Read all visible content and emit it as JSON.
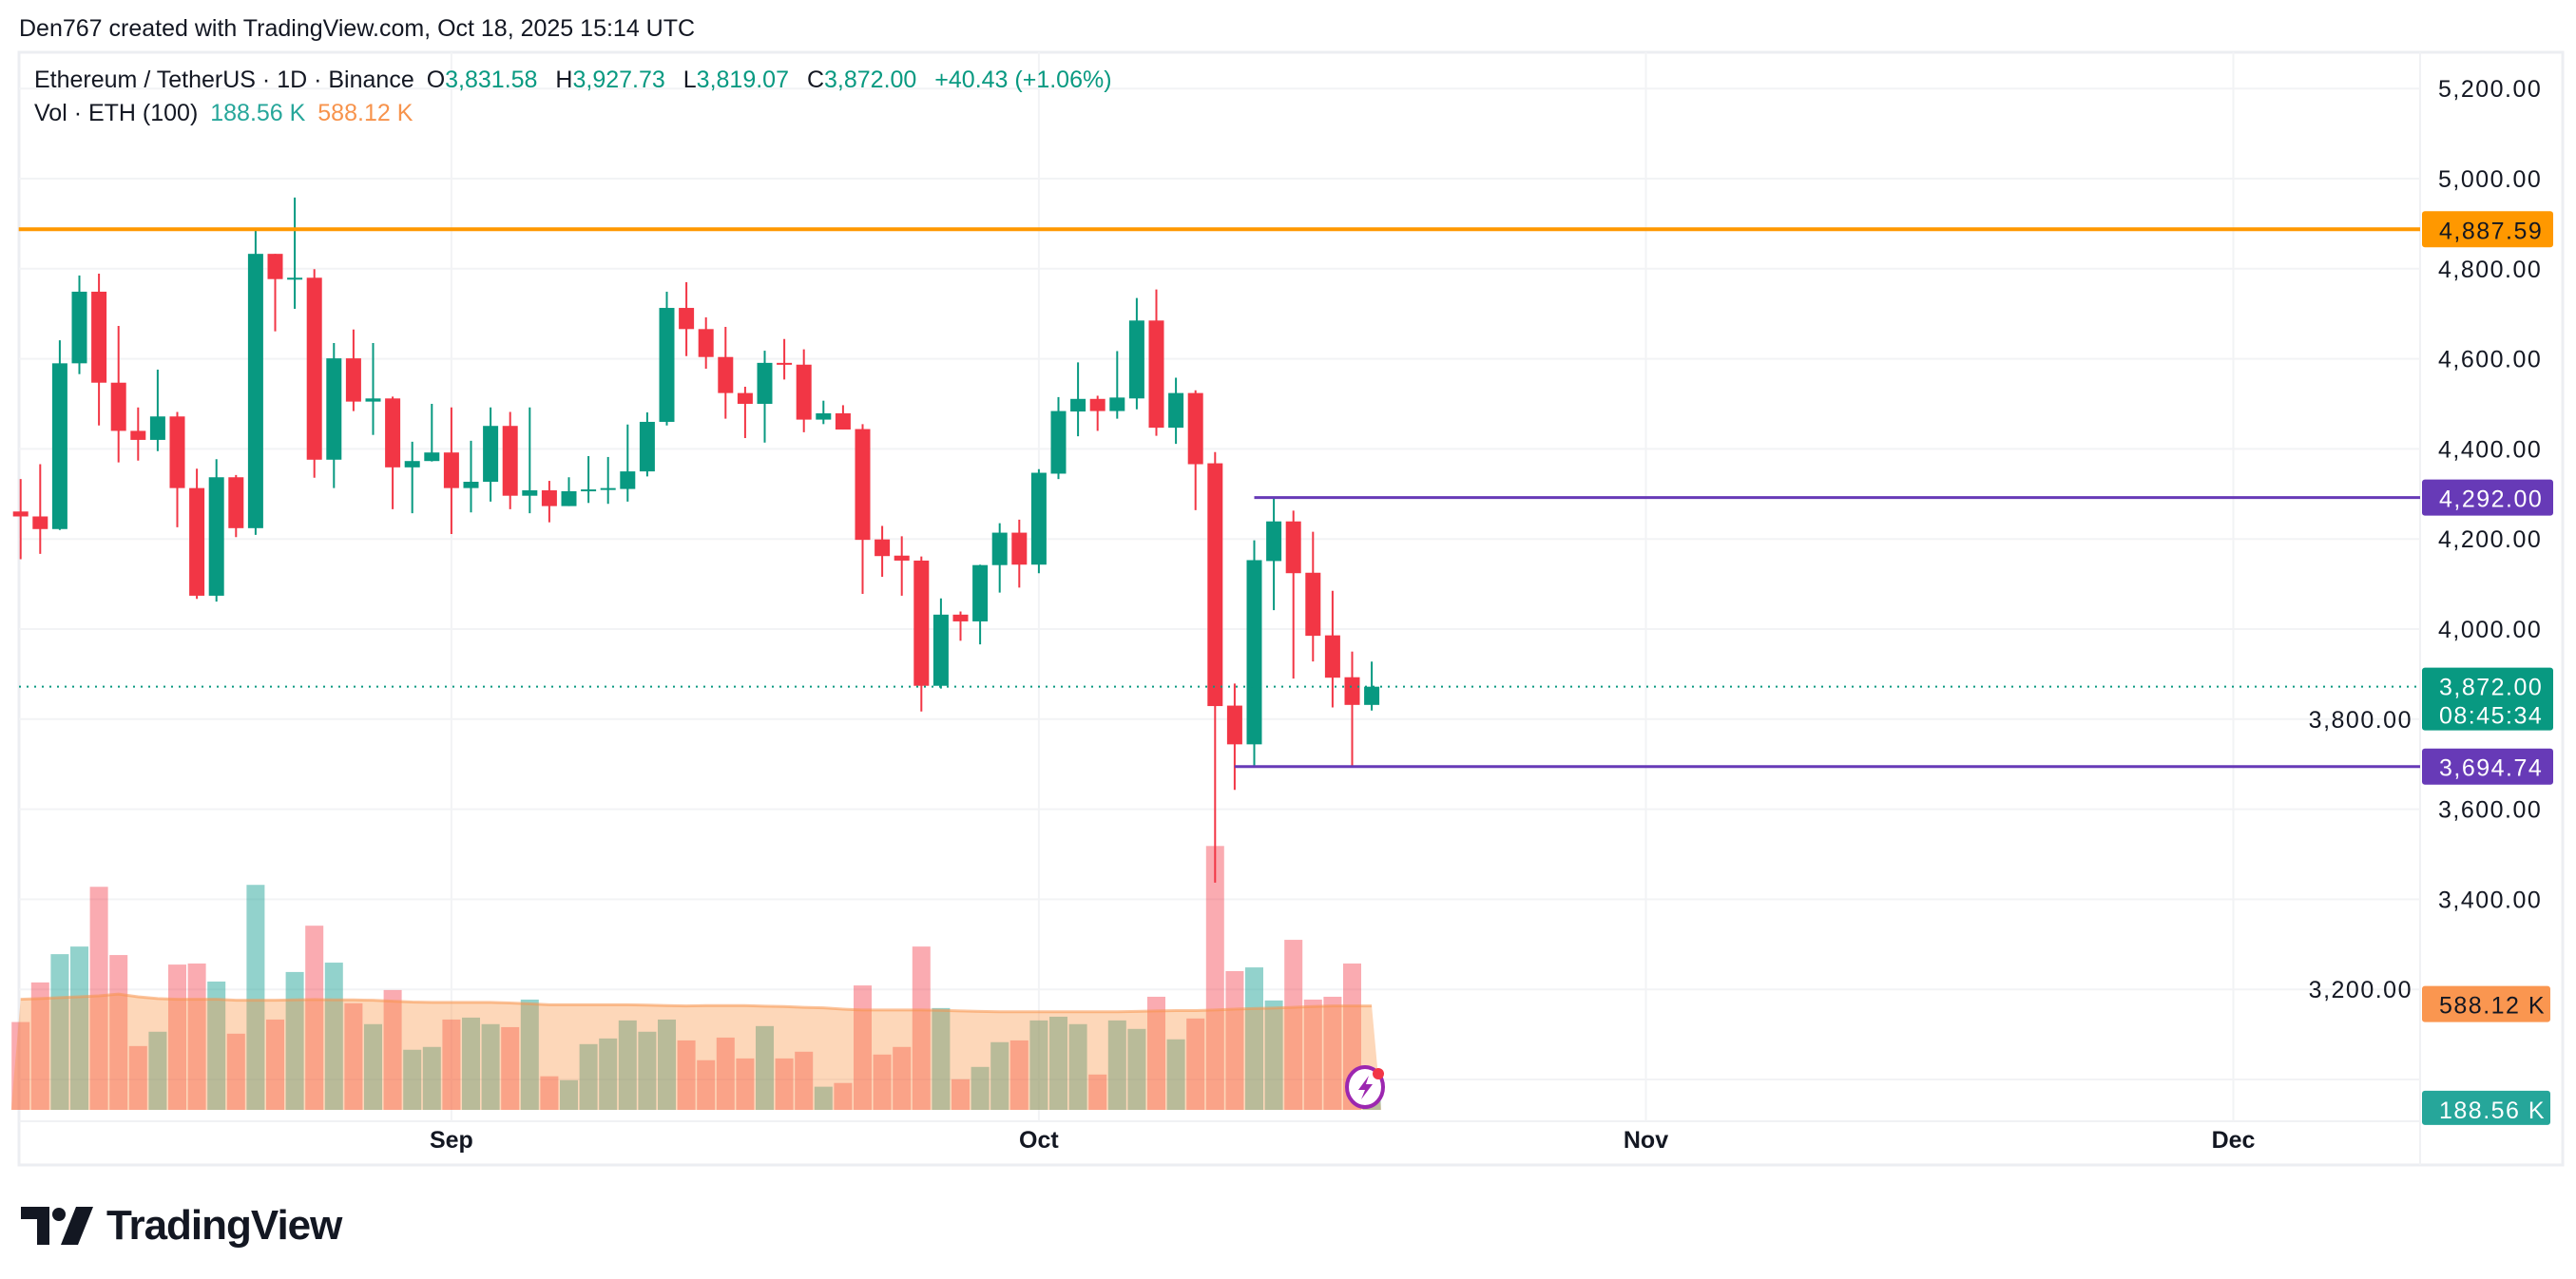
{
  "header": {
    "attribution": "Den767 created with TradingView.com, Oct 18, 2025 15:14 UTC"
  },
  "legend": {
    "symbol": "Ethereum / TetherUS · 1D · Binance",
    "open_label": "O",
    "open": "3,831.58",
    "high_label": "H",
    "high": "3,927.73",
    "low_label": "L",
    "low": "3,819.07",
    "close_label": "C",
    "close": "3,872.00",
    "change": "+40.43 (+1.06%)",
    "volume_label": "Vol · ETH (100)",
    "volume": "188.56 K",
    "volume_ma": "588.12 K"
  },
  "logo": {
    "text": "TradingView"
  },
  "colors": {
    "up": "#089981",
    "down": "#F23645",
    "resistance": "#FF9800",
    "levels": "#673AB7",
    "volume_ma": "#F7934C",
    "volume_up": "#26A69A"
  },
  "price_labels": {
    "resistance": "4,887.59",
    "upper_level": "4,292.00",
    "last_price": "3,872.00",
    "countdown": "08:45:34",
    "lower_level": "3,694.74",
    "volume_ma": "588.12 K",
    "volume": "188.56 K"
  },
  "chart_data": {
    "type": "candlestick",
    "ylim": [
      3000,
      5200
    ],
    "y_ticks": [
      "5,200.00",
      "5,000.00",
      "4,800.00",
      "4,600.00",
      "4,400.00",
      "4,200.00",
      "4,000.00",
      "3,800.00",
      "3,600.00",
      "3,400.00",
      "3,200.00"
    ],
    "y_tick_values": [
      5200,
      5000,
      4800,
      4600,
      4400,
      4200,
      4000,
      3800,
      3600,
      3400,
      3200
    ],
    "x_ticks": [
      {
        "label": "Sep",
        "date": "2025-09-01"
      },
      {
        "label": "Oct",
        "date": "2025-10-01"
      },
      {
        "label": "Nov",
        "date": "2025-11-01"
      },
      {
        "label": "Dec",
        "date": "2025-12-01"
      }
    ],
    "grid": true,
    "horizontal_lines": [
      {
        "price": 4887.59,
        "color": "#FF9800",
        "from": "2025-08-10"
      },
      {
        "price": 4292.0,
        "color": "#673AB7",
        "from": "2025-10-12"
      },
      {
        "price": 3694.74,
        "color": "#673AB7",
        "from": "2025-10-11"
      }
    ],
    "last_price": 3872.0,
    "dates": [
      "2025-08-10",
      "2025-08-11",
      "2025-08-12",
      "2025-08-13",
      "2025-08-14",
      "2025-08-15",
      "2025-08-16",
      "2025-08-17",
      "2025-08-18",
      "2025-08-19",
      "2025-08-20",
      "2025-08-21",
      "2025-08-22",
      "2025-08-23",
      "2025-08-24",
      "2025-08-25",
      "2025-08-26",
      "2025-08-27",
      "2025-08-28",
      "2025-08-29",
      "2025-08-30",
      "2025-08-31",
      "2025-09-01",
      "2025-09-02",
      "2025-09-03",
      "2025-09-04",
      "2025-09-05",
      "2025-09-06",
      "2025-09-07",
      "2025-09-08",
      "2025-09-09",
      "2025-09-10",
      "2025-09-11",
      "2025-09-12",
      "2025-09-13",
      "2025-09-14",
      "2025-09-15",
      "2025-09-16",
      "2025-09-17",
      "2025-09-18",
      "2025-09-19",
      "2025-09-20",
      "2025-09-21",
      "2025-09-22",
      "2025-09-23",
      "2025-09-24",
      "2025-09-25",
      "2025-09-26",
      "2025-09-27",
      "2025-09-28",
      "2025-09-29",
      "2025-09-30",
      "2025-10-01",
      "2025-10-02",
      "2025-10-03",
      "2025-10-04",
      "2025-10-05",
      "2025-10-06",
      "2025-10-07",
      "2025-10-08",
      "2025-10-09",
      "2025-10-10",
      "2025-10-11",
      "2025-10-12",
      "2025-10-13",
      "2025-10-14",
      "2025-10-15",
      "2025-10-16",
      "2025-10-17",
      "2025-10-18"
    ],
    "ohlc": [
      [
        4261,
        4333,
        4155,
        4250
      ],
      [
        4250,
        4366,
        4167,
        4222
      ],
      [
        4222,
        4641,
        4220,
        4590
      ],
      [
        4590,
        4785,
        4566,
        4749
      ],
      [
        4749,
        4789,
        4452,
        4547
      ],
      [
        4547,
        4673,
        4370,
        4440
      ],
      [
        4440,
        4492,
        4374,
        4420
      ],
      [
        4420,
        4576,
        4395,
        4472
      ],
      [
        4472,
        4482,
        4226,
        4313
      ],
      [
        4313,
        4356,
        4067,
        4074
      ],
      [
        4074,
        4377,
        4061,
        4337
      ],
      [
        4337,
        4342,
        4204,
        4224
      ],
      [
        4224,
        4889,
        4209,
        4833
      ],
      [
        4833,
        4833,
        4661,
        4777
      ],
      [
        4777,
        4958,
        4711,
        4780
      ],
      [
        4780,
        4799,
        4336,
        4376
      ],
      [
        4376,
        4635,
        4313,
        4601
      ],
      [
        4601,
        4665,
        4484,
        4505
      ],
      [
        4505,
        4635,
        4431,
        4512
      ],
      [
        4512,
        4516,
        4266,
        4359
      ],
      [
        4359,
        4416,
        4257,
        4373
      ],
      [
        4373,
        4500,
        4372,
        4392
      ],
      [
        4392,
        4492,
        4211,
        4313
      ],
      [
        4313,
        4418,
        4259,
        4327
      ],
      [
        4327,
        4492,
        4283,
        4451
      ],
      [
        4451,
        4482,
        4266,
        4296
      ],
      [
        4296,
        4492,
        4257,
        4308
      ],
      [
        4308,
        4329,
        4237,
        4273
      ],
      [
        4273,
        4337,
        4273,
        4306
      ],
      [
        4307,
        4384,
        4280,
        4310
      ],
      [
        4310,
        4382,
        4278,
        4313
      ],
      [
        4311,
        4454,
        4283,
        4350
      ],
      [
        4350,
        4481,
        4339,
        4460
      ],
      [
        4460,
        4749,
        4452,
        4713
      ],
      [
        4713,
        4770,
        4606,
        4666
      ],
      [
        4666,
        4692,
        4578,
        4604
      ],
      [
        4604,
        4671,
        4467,
        4524
      ],
      [
        4524,
        4538,
        4424,
        4500
      ],
      [
        4500,
        4618,
        4414,
        4591
      ],
      [
        4591,
        4644,
        4554,
        4588
      ],
      [
        4587,
        4621,
        4437,
        4465
      ],
      [
        4465,
        4507,
        4455,
        4479
      ],
      [
        4479,
        4497,
        4443,
        4443
      ],
      [
        4444,
        4455,
        4078,
        4198
      ],
      [
        4199,
        4229,
        4116,
        4162
      ],
      [
        4163,
        4206,
        4074,
        4152
      ],
      [
        4152,
        4161,
        3817,
        3874
      ],
      [
        3874,
        4068,
        3868,
        4032
      ],
      [
        4032,
        4039,
        3974,
        4017
      ],
      [
        4017,
        4143,
        3966,
        4142
      ],
      [
        4142,
        4235,
        4081,
        4214
      ],
      [
        4214,
        4243,
        4092,
        4143
      ],
      [
        4143,
        4355,
        4124,
        4347
      ],
      [
        4345,
        4515,
        4333,
        4484
      ],
      [
        4483,
        4592,
        4428,
        4511
      ],
      [
        4511,
        4518,
        4440,
        4484
      ],
      [
        4484,
        4617,
        4467,
        4514
      ],
      [
        4512,
        4735,
        4488,
        4685
      ],
      [
        4685,
        4754,
        4429,
        4447
      ],
      [
        4447,
        4558,
        4411,
        4524
      ],
      [
        4524,
        4530,
        4264,
        4366
      ],
      [
        4368,
        4393,
        3437,
        3829
      ],
      [
        3830,
        3879,
        3643,
        3744
      ],
      [
        3744,
        4197,
        3694.74,
        4153
      ],
      [
        4151,
        4292,
        4042,
        4239
      ],
      [
        4239,
        4263,
        3890,
        4124
      ],
      [
        4125,
        4216,
        3928,
        3985
      ],
      [
        3986,
        4085,
        3826,
        3892
      ],
      [
        3893,
        3950,
        3694.74,
        3831.58
      ],
      [
        3831.58,
        3927.73,
        3819.07,
        3872.0
      ]
    ],
    "volume_unit": "K ETH",
    "volume": [
      497,
      721,
      881,
      924,
      1262,
      876,
      361,
      442,
      822,
      828,
      726,
      431,
      1273,
      511,
      780,
      1042,
      833,
      603,
      485,
      678,
      340,
      356,
      511,
      522,
      485,
      468,
      624,
      190,
      168,
      372,
      404,
      506,
      442,
      511,
      393,
      281,
      409,
      291,
      474,
      291,
      329,
      131,
      152,
      704,
      313,
      356,
      924,
      576,
      173,
      243,
      383,
      393,
      506,
      527,
      485,
      200,
      506,
      458,
      640,
      399,
      517,
      1493,
      785,
      806,
      619,
      962,
      624,
      640,
      828,
      188.56
    ],
    "volume_ma_period": 100,
    "volume_ma": [
      626,
      630,
      635,
      640,
      645,
      655,
      640,
      630,
      626,
      626,
      626,
      620,
      620,
      620,
      622,
      624,
      622,
      622,
      620,
      615,
      610,
      608,
      608,
      608,
      608,
      605,
      600,
      595,
      595,
      595,
      595,
      595,
      593,
      590,
      588,
      590,
      590,
      590,
      587,
      585,
      580,
      577,
      570,
      565,
      565,
      565,
      565,
      563,
      560,
      557,
      555,
      555,
      555,
      555,
      555,
      555,
      555,
      557,
      560,
      562,
      562,
      565,
      570,
      573,
      576,
      580,
      585,
      588,
      588,
      588.12
    ]
  }
}
